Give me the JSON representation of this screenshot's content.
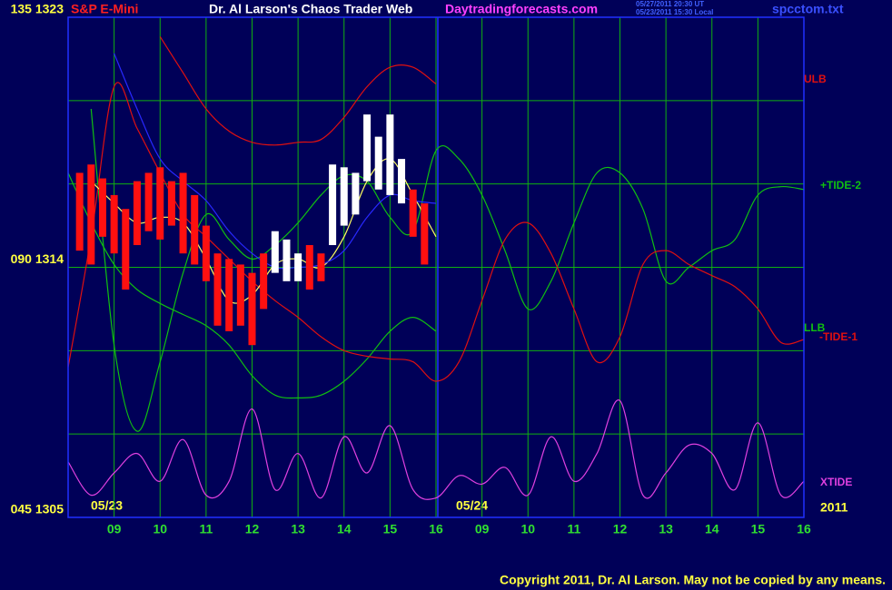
{
  "chart_data": {
    "type": "line",
    "instrument": "S&P E-Mini",
    "title": "Dr. Al Larson's Chaos Trader Web",
    "website": "Daytradingforecasts.com",
    "timestamps": [
      "05/27/2011 20:30 UT",
      "05/23/2011 15:30 Local"
    ],
    "file": "spcctom.txt",
    "copyright": "Copyright 2011, Dr. Al Larson. May not be copied by any means.",
    "dates": [
      "05/23",
      "05/24"
    ],
    "year": "2011",
    "xlim": [
      0,
      16
    ],
    "ylim": [
      1305,
      1323
    ],
    "xticks": [
      {
        "value": 1,
        "label": "09"
      },
      {
        "value": 2,
        "label": "10"
      },
      {
        "value": 3,
        "label": "11"
      },
      {
        "value": 4,
        "label": "12"
      },
      {
        "value": 5,
        "label": "13"
      },
      {
        "value": 6,
        "label": "14"
      },
      {
        "value": 7,
        "label": "15"
      },
      {
        "value": 8,
        "label": "16"
      },
      {
        "value": 9,
        "label": "09"
      },
      {
        "value": 10,
        "label": "10"
      },
      {
        "value": 11,
        "label": "11"
      },
      {
        "value": 12,
        "label": "12"
      },
      {
        "value": 13,
        "label": "13"
      },
      {
        "value": 14,
        "label": "14"
      },
      {
        "value": 15,
        "label": "15"
      },
      {
        "value": 16,
        "label": "16"
      }
    ],
    "yticks": [
      {
        "value": 1323,
        "label": "135 1323"
      },
      {
        "value": 1314,
        "label": "090 1314"
      },
      {
        "value": 1305,
        "label": "045 1305"
      }
    ],
    "minor_yticks": [
      1320,
      1317,
      1311,
      1308
    ],
    "grid": true,
    "separator_x": 8,
    "x": [
      0,
      0.5,
      1,
      1.5,
      2,
      2.5,
      3,
      3.5,
      4,
      4.5,
      5,
      5.5,
      6,
      6.5,
      7,
      7.5,
      8,
      8.5,
      9,
      9.5,
      10,
      10.5,
      11,
      11.5,
      12,
      12.5,
      13,
      13.5,
      14,
      14.5,
      15,
      15.5,
      16
    ],
    "series": [
      {
        "name": "ULB",
        "color": "#e01010",
        "values": [
          null,
          null,
          null,
          null,
          1322.3,
          1321.0,
          1319.7,
          1318.9,
          1318.5,
          1318.4,
          1318.5,
          1318.6,
          1319.4,
          1320.5,
          1321.2,
          1321.2,
          1320.6,
          null,
          null,
          null,
          null,
          null,
          null,
          null,
          null,
          null,
          null,
          null,
          null,
          null,
          null,
          null,
          null
        ]
      },
      {
        "name": "+TIDE-2",
        "color": "#10c010",
        "values": [
          null,
          1319.7,
          1311.2,
          1308.1,
          1310.6,
          1313.8,
          1315.9,
          1315.0,
          1314.3,
          1314.8,
          1315.6,
          1316.6,
          1317.3,
          1317.1,
          1315.8,
          1315.3,
          1318.2,
          1317.9,
          1316.6,
          1314.6,
          1312.5,
          1313.5,
          1315.6,
          1317.4,
          1317.4,
          1316.1,
          1313.5,
          1314.0,
          1314.6,
          1315.0,
          1316.6,
          1316.9,
          1316.8
        ]
      },
      {
        "name": "LLB",
        "color": "#10c010",
        "values": [
          1317.4,
          1315.6,
          1314.1,
          1313.2,
          1312.7,
          1312.3,
          1311.9,
          1311.2,
          1310.1,
          1309.4,
          1309.3,
          1309.4,
          1309.9,
          1310.7,
          1311.7,
          1312.2,
          1311.7,
          null,
          null,
          null,
          null,
          null,
          null,
          null,
          null,
          null,
          null,
          null,
          null,
          null,
          null,
          null,
          null
        ]
      },
      {
        "name": "-TIDE-1",
        "color": "#e01010",
        "values": [
          1310.4,
          1315.1,
          1320.5,
          1319.0,
          1317.4,
          1315.9,
          1315.1,
          1314.3,
          1313.5,
          1312.8,
          1312.2,
          1311.5,
          1311.0,
          1310.8,
          1310.7,
          1310.6,
          1309.9,
          1310.6,
          1312.8,
          1315.0,
          1315.6,
          1314.5,
          1312.5,
          1310.6,
          1311.5,
          1314.1,
          1314.6,
          1314.1,
          1313.7,
          1313.3,
          1312.5,
          1311.3,
          1311.4
        ]
      },
      {
        "name": "XTIDE",
        "color": "#e040e0",
        "values": [
          1307.0,
          1305.8,
          1306.6,
          1307.3,
          1306.3,
          1307.8,
          1305.8,
          1306.3,
          1308.9,
          1306.0,
          1307.3,
          1305.7,
          1307.9,
          1306.6,
          1308.3,
          1306.0,
          1305.7,
          1306.5,
          1306.2,
          1306.8,
          1305.8,
          1307.9,
          1306.3,
          1307.3,
          1309.2,
          1305.8,
          1306.6,
          1307.6,
          1307.3,
          1306.0,
          1308.4,
          1305.8,
          1306.3
        ]
      },
      {
        "color": "#ffff60",
        "values": [
          null,
          1317.1,
          1316.3,
          1315.6,
          1315.8,
          1315.6,
          1314.3,
          1312.8,
          1313.0,
          1314.1,
          1314.3,
          1314.0,
          1315.1,
          1317.1,
          1317.9,
          1316.6,
          1315.1,
          null,
          null,
          null,
          null,
          null,
          null,
          null,
          null,
          null,
          null,
          null,
          null,
          null,
          null,
          null,
          null
        ]
      },
      {
        "color": "#2828ff",
        "values": [
          null,
          null,
          1321.7,
          1319.7,
          1317.9,
          1317.1,
          1316.4,
          1315.3,
          1314.5,
          1314.0,
          1314.0,
          1314.1,
          1314.6,
          1315.8,
          1316.6,
          1316.4,
          1316.3,
          null,
          null,
          null,
          null,
          null,
          null,
          null,
          null,
          null,
          null,
          null,
          null,
          null,
          null,
          null,
          null
        ]
      }
    ],
    "bars": [
      {
        "color": "#ff1010",
        "x": [
          0.25,
          0.5,
          0.75,
          1,
          1.25,
          1.5,
          1.75,
          2,
          2.25,
          2.5,
          2.75,
          3,
          3.25,
          3.5,
          3.75,
          4,
          4.25,
          5.25,
          5.5,
          7.5,
          7.75
        ],
        "high": [
          1317.4,
          1317.7,
          1317.2,
          1316.6,
          1316.1,
          1317.1,
          1317.4,
          1317.6,
          1317.1,
          1317.4,
          1316.6,
          1315.5,
          1314.5,
          1314.3,
          1314.1,
          1313.8,
          1314.5,
          1314.8,
          1314.5,
          1316.8,
          1316.3
        ],
        "low": [
          1314.6,
          1314.1,
          1315.1,
          1314.5,
          1313.2,
          1314.8,
          1315.3,
          1315.0,
          1315.5,
          1314.5,
          1314.1,
          1313.5,
          1311.9,
          1311.7,
          1311.9,
          1311.2,
          1312.5,
          1313.2,
          1313.5,
          1315.1,
          1314.1
        ]
      },
      {
        "color": "#ffffff",
        "x": [
          4.5,
          4.75,
          5,
          5.75,
          6,
          6.25,
          6.5,
          6.75,
          7,
          7.25
        ],
        "high": [
          1315.3,
          1315.0,
          1314.5,
          1317.7,
          1317.6,
          1317.4,
          1319.5,
          1318.7,
          1319.5,
          1317.9
        ],
        "low": [
          1313.8,
          1313.5,
          1313.5,
          1314.8,
          1315.5,
          1315.9,
          1317.1,
          1316.8,
          1316.6,
          1316.3
        ]
      }
    ]
  }
}
